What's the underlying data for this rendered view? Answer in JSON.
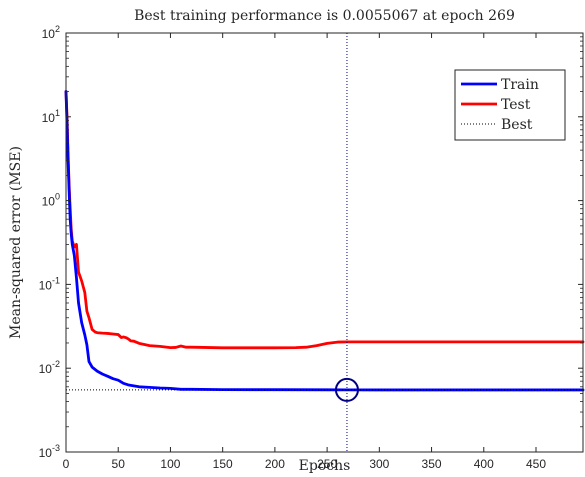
{
  "chart_data": {
    "type": "line",
    "title": "Best training performance is 0.0055067 at epoch 269",
    "xlabel": "Epochs",
    "ylabel": "Mean-squared error  (MSE)",
    "xlim": [
      0,
      495
    ],
    "ylim": [
      0.001,
      100
    ],
    "yscale": "log",
    "xticks": [
      0,
      50,
      100,
      150,
      200,
      250,
      300,
      350,
      400,
      450
    ],
    "yticks": [
      {
        "value": 0.001,
        "base": "10",
        "exp": "-3"
      },
      {
        "value": 0.01,
        "base": "10",
        "exp": "-2"
      },
      {
        "value": 0.1,
        "base": "10",
        "exp": "-1"
      },
      {
        "value": 1,
        "base": "10",
        "exp": "0"
      },
      {
        "value": 10,
        "base": "10",
        "exp": "1"
      },
      {
        "value": 100,
        "base": "10",
        "exp": "2"
      }
    ],
    "grid": false,
    "legend_position": "top-right",
    "best": {
      "epoch": 269,
      "value": 0.0055067
    },
    "series": [
      {
        "name": "Train",
        "color": "#0000ff",
        "x": [
          0,
          1,
          2,
          3,
          4,
          5,
          6,
          8,
          10,
          12,
          15,
          18,
          20,
          22,
          25,
          30,
          35,
          40,
          45,
          50,
          55,
          60,
          70,
          80,
          90,
          100,
          110,
          120,
          150,
          200,
          250,
          269,
          300,
          350,
          400,
          450,
          495
        ],
        "y": [
          20,
          8,
          3,
          1.3,
          0.6,
          0.4,
          0.3,
          0.22,
          0.12,
          0.06,
          0.035,
          0.025,
          0.019,
          0.012,
          0.0103,
          0.0092,
          0.0085,
          0.008,
          0.0075,
          0.0072,
          0.0066,
          0.0063,
          0.006,
          0.0059,
          0.0058,
          0.00575,
          0.0056,
          0.0056,
          0.00555,
          0.00554,
          0.00552,
          0.0055067,
          0.0055,
          0.0055,
          0.0055,
          0.0055,
          0.0055
        ]
      },
      {
        "name": "Test",
        "color": "#ff0000",
        "x": [
          0,
          1,
          2,
          3,
          4,
          5,
          6,
          8,
          10,
          12,
          15,
          18,
          20,
          22,
          25,
          28,
          30,
          35,
          40,
          45,
          50,
          53,
          55,
          58,
          60,
          62,
          65,
          70,
          80,
          90,
          100,
          105,
          110,
          115,
          120,
          150,
          200,
          220,
          230,
          240,
          250,
          260,
          270,
          300,
          350,
          400,
          450,
          495
        ],
        "y": [
          20,
          10,
          3.5,
          1.5,
          0.8,
          0.45,
          0.33,
          0.28,
          0.3,
          0.14,
          0.11,
          0.08,
          0.048,
          0.04,
          0.029,
          0.027,
          0.0265,
          0.0262,
          0.026,
          0.0256,
          0.0252,
          0.0232,
          0.0236,
          0.023,
          0.0222,
          0.0212,
          0.021,
          0.0198,
          0.0186,
          0.0182,
          0.0176,
          0.0177,
          0.0184,
          0.0178,
          0.0178,
          0.0175,
          0.0175,
          0.0176,
          0.0178,
          0.0186,
          0.0198,
          0.0205,
          0.0206,
          0.0206,
          0.0206,
          0.0206,
          0.0206,
          0.0206
        ]
      }
    ],
    "legend": [
      {
        "name": "Train",
        "color": "#0000ff",
        "style": "solid"
      },
      {
        "name": "Test",
        "color": "#ff0000",
        "style": "solid"
      },
      {
        "name": "Best",
        "color": "#000000",
        "style": "dotted"
      }
    ]
  }
}
